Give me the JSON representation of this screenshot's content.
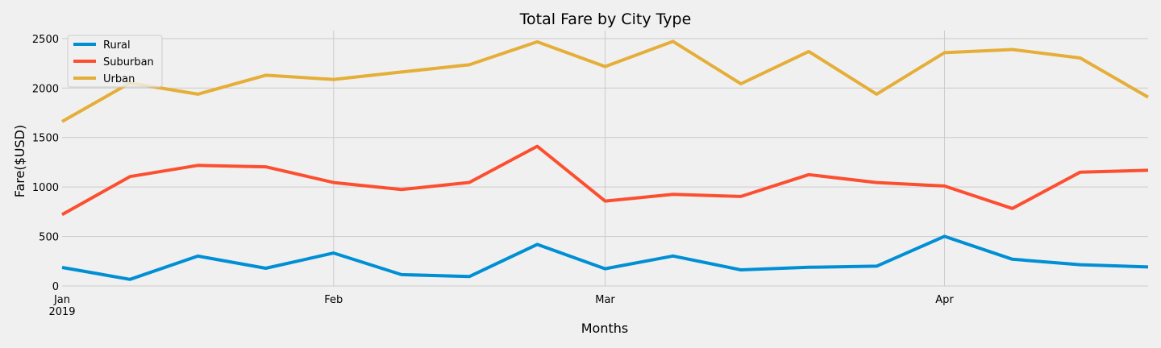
{
  "chart_data": {
    "type": "line",
    "title": "Total Fare by City Type",
    "xlabel": "Months",
    "ylabel": "Fare($USD)",
    "x": [
      "2019-01-06",
      "2019-01-13",
      "2019-01-20",
      "2019-01-27",
      "2019-02-03",
      "2019-02-10",
      "2019-02-17",
      "2019-02-24",
      "2019-03-03",
      "2019-03-10",
      "2019-03-17",
      "2019-03-24",
      "2019-03-31",
      "2019-04-07",
      "2019-04-14",
      "2019-04-21",
      "2019-04-28"
    ],
    "xlim": [
      "2019-01-06",
      "2019-04-28"
    ],
    "x_ticks": [
      {
        "date": "2019-01-06",
        "label": "Jan",
        "sublabel": "2019"
      },
      {
        "date": "2019-02-03",
        "label": "Feb",
        "sublabel": ""
      },
      {
        "date": "2019-03-03",
        "label": "Mar",
        "sublabel": ""
      },
      {
        "date": "2019-04-07",
        "label": "Apr",
        "sublabel": ""
      }
    ],
    "ylim": [
      0,
      2580
    ],
    "y_ticks": [
      0,
      500,
      1000,
      1500,
      2000,
      2500
    ],
    "grid": true,
    "legend_position": "top-left",
    "series": [
      {
        "name": "Rural",
        "color": "#008fd5",
        "values": [
          187,
          67,
          302,
          179,
          333,
          115,
          95,
          420,
          174,
          303,
          163,
          189,
          200,
          501,
          270,
          215,
          192
        ]
      },
      {
        "name": "Suburban",
        "color": "#fc4f30",
        "values": [
          721,
          1105,
          1218,
          1204,
          1045,
          974,
          1046,
          1411,
          858,
          925,
          904,
          1125,
          1045,
          1010,
          783,
          1150,
          1169
        ]
      },
      {
        "name": "Urban",
        "color": "#e5ae38",
        "values": [
          1661,
          2051,
          1938,
          2129,
          2087,
          2162,
          2235,
          2467,
          2217,
          2471,
          2043,
          2369,
          1938,
          2357,
          2389,
          2303,
          1908
        ]
      }
    ]
  }
}
